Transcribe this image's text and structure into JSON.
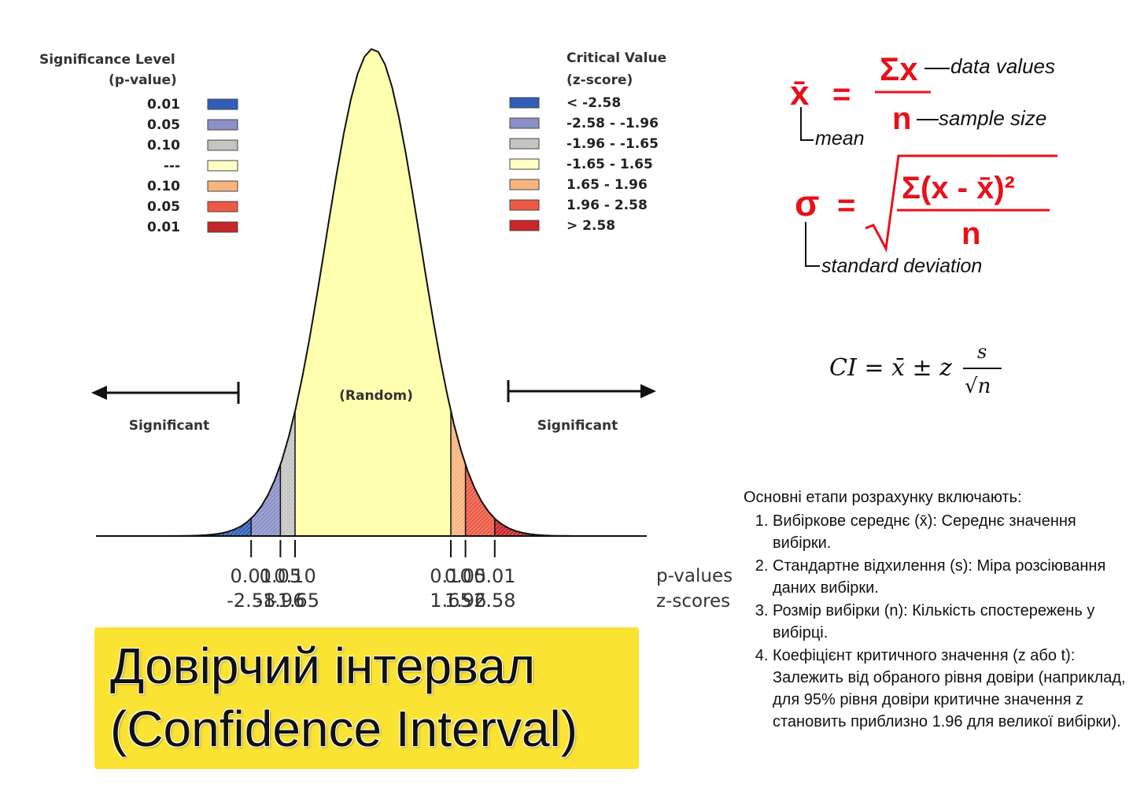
{
  "legend_left": {
    "title_line1": "Significance Level",
    "title_line2": "(p-value)",
    "rows": [
      "0.01",
      "0.05",
      "0.10",
      "---",
      "0.10",
      "0.05",
      "0.01"
    ]
  },
  "legend_right": {
    "title_line1": "Critical Value",
    "title_line2": "(z-score)",
    "rows": [
      "< -2.58",
      "-2.58 - -1.96",
      "-1.96 - -1.65",
      "-1.65 - 1.65",
      "1.65 - 1.96",
      "1.96 - 2.58",
      "> 2.58"
    ]
  },
  "colors": {
    "swatches": [
      "#2f5fb8",
      "#8b90c8",
      "#c4c4c0",
      "#ffffc4",
      "#f7b47f",
      "#ec5a45",
      "#c8262a"
    ],
    "curve_center": "#ffffb0",
    "title_background": "#fbe333",
    "formula_red": "#e8101a"
  },
  "curve": {
    "random_label": "(Random)",
    "significant_left": "Significant",
    "significant_right": "Significant"
  },
  "axis": {
    "p_values_left": [
      "0.01",
      "0.05",
      "0.10"
    ],
    "z_scores_left": [
      "-2.58",
      "-1.96",
      "-1.65"
    ],
    "p_values_right": [
      "0.10",
      "0.05",
      "0.01"
    ],
    "z_scores_right": [
      "1.65",
      "1.96",
      "2.58"
    ],
    "p_label": "p-values",
    "z_label": "z-scores"
  },
  "formulas": {
    "mean": {
      "symbol": "x̄",
      "equals": "=",
      "numerator": "Σx",
      "denominator": "n",
      "label_data": "data values",
      "label_size": "sample size",
      "label_mean": "mean"
    },
    "std": {
      "symbol": "σ",
      "equals": "=",
      "numerator": "Σ(x - x̄)²",
      "denominator": "n",
      "label_std": "standard deviation"
    },
    "ci": {
      "lhs": "CI = x̄ ± z",
      "numerator": "s",
      "denominator": "√n"
    }
  },
  "title": {
    "line1": "Довірчий інтервал",
    "line2": "(Confidence Interval)"
  },
  "steps": {
    "intro": "Основні етапи розрахунку включають:",
    "items": [
      "Вибіркове середнє (x̄): Середнє значення вибірки.",
      "Стандартне відхилення (s): Міра розсіювання даних вибірки.",
      "Розмір вибірки (n): Кількість спостережень у вибірці.",
      "Коефіцієнт критичного значення (z або t): Залежить від обраного рівня довіри (наприклад, для 95% рівня довіри критичне значення z становить приблизно 1.96 для великої вибірки)."
    ]
  }
}
